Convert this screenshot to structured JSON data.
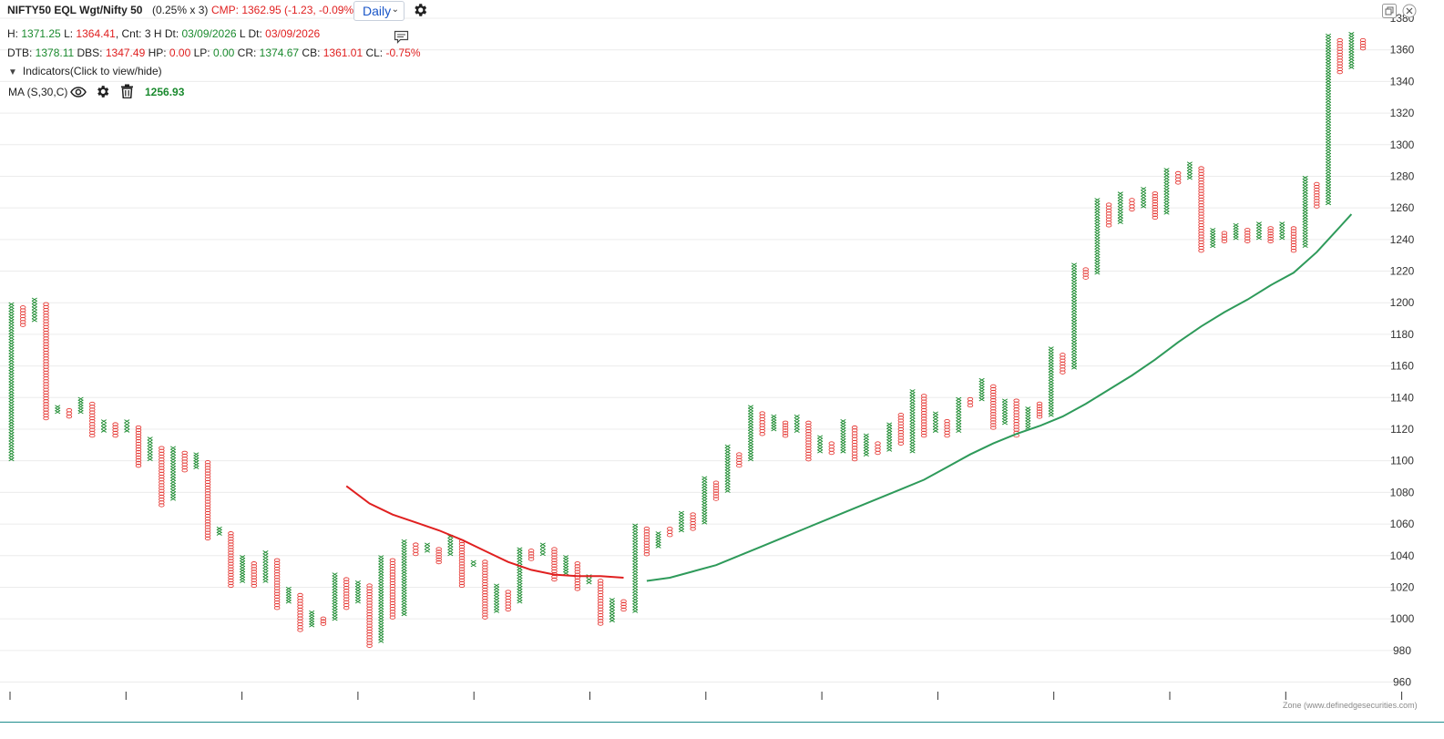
{
  "header": {
    "symbol": "NIFTY50 EQL Wgt/Nifty 50",
    "box_info": "(0.25% x 3)",
    "cmp": "CMP: 1362.95 (-1.23, -0.09%)",
    "interval": "Daily",
    "row2": {
      "h_label": "H: ",
      "h_value": "1371.25",
      "l_label": " L: ",
      "l_value": "1364.41",
      "cnt": ", Cnt: 3 H Dt: ",
      "h_dt": "03/09/2026",
      "l_dt_label": " L Dt: ",
      "l_dt": "03/09/2026"
    },
    "row3": {
      "dtb_label": "DTB: ",
      "dtb": "1378.11",
      "dbs_label": " DBS: ",
      "dbs": "1347.49",
      "hp_label": " HP: ",
      "hp": "0.00",
      "lp_label": " LP: ",
      "lp": "0.00",
      "cr_label": " CR: ",
      "cr": "1374.67",
      "cb_label": " CB: ",
      "cb": "1361.01",
      "cl_label": " CL: ",
      "cl": "-0.75%"
    },
    "indicators_toggle": "Indicators(Click to view/hide)",
    "indicator": {
      "name": "MA (S,30,C)",
      "value": "1256.93"
    }
  },
  "watermark": "Zone (www.definedgesecurities.com)",
  "colors": {
    "x": "#1a8a2e",
    "o": "#e53935",
    "ma_green": "#2e9a5a",
    "ma_red": "#e02020",
    "grid": "#ececec"
  },
  "icons": [
    "gear-icon",
    "eye-icon",
    "trash-icon",
    "comment-icon",
    "restore-window-icon",
    "close-icon"
  ],
  "chart_data": {
    "type": "point-and-figure",
    "box_percent": 0.25,
    "reversal": 3,
    "ylim": [
      958,
      1380
    ],
    "y_ticks": [
      "960",
      "980",
      "1000",
      "1020",
      "1040",
      "1060",
      "1080",
      "1100",
      "1120",
      "1140",
      "1160",
      "1180",
      "1200",
      "1220",
      "1240",
      "1260",
      "1280",
      "1300",
      "1320",
      "1340",
      "1360",
      "1380"
    ],
    "columns": [
      {
        "t": "X",
        "lo": 1100,
        "hi": 1200
      },
      {
        "t": "O",
        "lo": 1185,
        "hi": 1198
      },
      {
        "t": "X",
        "lo": 1188,
        "hi": 1203
      },
      {
        "t": "O",
        "lo": 1126,
        "hi": 1200
      },
      {
        "t": "X",
        "lo": 1130,
        "hi": 1135
      },
      {
        "t": "O",
        "lo": 1127,
        "hi": 1133
      },
      {
        "t": "X",
        "lo": 1130,
        "hi": 1140
      },
      {
        "t": "O",
        "lo": 1115,
        "hi": 1137
      },
      {
        "t": "X",
        "lo": 1118,
        "hi": 1126
      },
      {
        "t": "O",
        "lo": 1115,
        "hi": 1124
      },
      {
        "t": "X",
        "lo": 1118,
        "hi": 1126
      },
      {
        "t": "O",
        "lo": 1096,
        "hi": 1122
      },
      {
        "t": "X",
        "lo": 1100,
        "hi": 1115
      },
      {
        "t": "O",
        "lo": 1071,
        "hi": 1109
      },
      {
        "t": "X",
        "lo": 1075,
        "hi": 1109
      },
      {
        "t": "O",
        "lo": 1093,
        "hi": 1106
      },
      {
        "t": "X",
        "lo": 1095,
        "hi": 1105
      },
      {
        "t": "O",
        "lo": 1050,
        "hi": 1100
      },
      {
        "t": "X",
        "lo": 1053,
        "hi": 1058
      },
      {
        "t": "O",
        "lo": 1020,
        "hi": 1055
      },
      {
        "t": "X",
        "lo": 1023,
        "hi": 1040
      },
      {
        "t": "O",
        "lo": 1020,
        "hi": 1036
      },
      {
        "t": "X",
        "lo": 1023,
        "hi": 1043
      },
      {
        "t": "O",
        "lo": 1006,
        "hi": 1038
      },
      {
        "t": "X",
        "lo": 1010,
        "hi": 1020
      },
      {
        "t": "O",
        "lo": 992,
        "hi": 1016
      },
      {
        "t": "X",
        "lo": 995,
        "hi": 1005
      },
      {
        "t": "O",
        "lo": 996,
        "hi": 1001
      },
      {
        "t": "X",
        "lo": 999,
        "hi": 1029
      },
      {
        "t": "O",
        "lo": 1006,
        "hi": 1026
      },
      {
        "t": "X",
        "lo": 1010,
        "hi": 1024
      },
      {
        "t": "O",
        "lo": 982,
        "hi": 1022
      },
      {
        "t": "X",
        "lo": 985,
        "hi": 1040
      },
      {
        "t": "O",
        "lo": 1000,
        "hi": 1038
      },
      {
        "t": "X",
        "lo": 1002,
        "hi": 1050
      },
      {
        "t": "O",
        "lo": 1040,
        "hi": 1048
      },
      {
        "t": "X",
        "lo": 1042,
        "hi": 1048
      },
      {
        "t": "O",
        "lo": 1035,
        "hi": 1045
      },
      {
        "t": "X",
        "lo": 1040,
        "hi": 1053
      },
      {
        "t": "O",
        "lo": 1020,
        "hi": 1050
      },
      {
        "t": "X",
        "lo": 1033,
        "hi": 1037
      },
      {
        "t": "O",
        "lo": 1000,
        "hi": 1037
      },
      {
        "t": "X",
        "lo": 1004,
        "hi": 1022
      },
      {
        "t": "O",
        "lo": 1005,
        "hi": 1018
      },
      {
        "t": "X",
        "lo": 1010,
        "hi": 1045
      },
      {
        "t": "O",
        "lo": 1037,
        "hi": 1044
      },
      {
        "t": "X",
        "lo": 1040,
        "hi": 1048
      },
      {
        "t": "O",
        "lo": 1024,
        "hi": 1045
      },
      {
        "t": "X",
        "lo": 1028,
        "hi": 1040
      },
      {
        "t": "O",
        "lo": 1018,
        "hi": 1036
      },
      {
        "t": "X",
        "lo": 1022,
        "hi": 1028
      },
      {
        "t": "O",
        "lo": 996,
        "hi": 1025
      },
      {
        "t": "X",
        "lo": 998,
        "hi": 1013
      },
      {
        "t": "O",
        "lo": 1005,
        "hi": 1012
      },
      {
        "t": "X",
        "lo": 1004,
        "hi": 1060
      },
      {
        "t": "O",
        "lo": 1040,
        "hi": 1058
      },
      {
        "t": "X",
        "lo": 1045,
        "hi": 1055
      },
      {
        "t": "O",
        "lo": 1052,
        "hi": 1058
      },
      {
        "t": "X",
        "lo": 1055,
        "hi": 1068
      },
      {
        "t": "O",
        "lo": 1056,
        "hi": 1067
      },
      {
        "t": "X",
        "lo": 1060,
        "hi": 1090
      },
      {
        "t": "O",
        "lo": 1075,
        "hi": 1087
      },
      {
        "t": "X",
        "lo": 1080,
        "hi": 1110
      },
      {
        "t": "O",
        "lo": 1096,
        "hi": 1105
      },
      {
        "t": "X",
        "lo": 1100,
        "hi": 1135
      },
      {
        "t": "O",
        "lo": 1116,
        "hi": 1131
      },
      {
        "t": "X",
        "lo": 1119,
        "hi": 1129
      },
      {
        "t": "O",
        "lo": 1115,
        "hi": 1125
      },
      {
        "t": "X",
        "lo": 1118,
        "hi": 1129
      },
      {
        "t": "O",
        "lo": 1100,
        "hi": 1125
      },
      {
        "t": "X",
        "lo": 1105,
        "hi": 1116
      },
      {
        "t": "O",
        "lo": 1104,
        "hi": 1112
      },
      {
        "t": "X",
        "lo": 1105,
        "hi": 1126
      },
      {
        "t": "O",
        "lo": 1100,
        "hi": 1122
      },
      {
        "t": "X",
        "lo": 1103,
        "hi": 1117
      },
      {
        "t": "O",
        "lo": 1104,
        "hi": 1112
      },
      {
        "t": "X",
        "lo": 1106,
        "hi": 1124
      },
      {
        "t": "O",
        "lo": 1110,
        "hi": 1130
      },
      {
        "t": "X",
        "lo": 1105,
        "hi": 1145
      },
      {
        "t": "O",
        "lo": 1115,
        "hi": 1142
      },
      {
        "t": "X",
        "lo": 1118,
        "hi": 1131
      },
      {
        "t": "O",
        "lo": 1115,
        "hi": 1126
      },
      {
        "t": "X",
        "lo": 1118,
        "hi": 1140
      },
      {
        "t": "O",
        "lo": 1134,
        "hi": 1140
      },
      {
        "t": "X",
        "lo": 1138,
        "hi": 1152
      },
      {
        "t": "O",
        "lo": 1120,
        "hi": 1148
      },
      {
        "t": "X",
        "lo": 1123,
        "hi": 1139
      },
      {
        "t": "O",
        "lo": 1115,
        "hi": 1139
      },
      {
        "t": "X",
        "lo": 1120,
        "hi": 1134
      },
      {
        "t": "O",
        "lo": 1127,
        "hi": 1137
      },
      {
        "t": "X",
        "lo": 1128,
        "hi": 1172
      },
      {
        "t": "O",
        "lo": 1155,
        "hi": 1168
      },
      {
        "t": "X",
        "lo": 1158,
        "hi": 1225
      },
      {
        "t": "O",
        "lo": 1215,
        "hi": 1222
      },
      {
        "t": "X",
        "lo": 1218,
        "hi": 1266
      },
      {
        "t": "O",
        "lo": 1248,
        "hi": 1263
      },
      {
        "t": "X",
        "lo": 1250,
        "hi": 1270
      },
      {
        "t": "O",
        "lo": 1258,
        "hi": 1266
      },
      {
        "t": "X",
        "lo": 1260,
        "hi": 1273
      },
      {
        "t": "O",
        "lo": 1253,
        "hi": 1270
      },
      {
        "t": "X",
        "lo": 1256,
        "hi": 1285
      },
      {
        "t": "O",
        "lo": 1275,
        "hi": 1283
      },
      {
        "t": "X",
        "lo": 1278,
        "hi": 1289
      },
      {
        "t": "O",
        "lo": 1232,
        "hi": 1286
      },
      {
        "t": "X",
        "lo": 1235,
        "hi": 1247
      },
      {
        "t": "O",
        "lo": 1238,
        "hi": 1245
      },
      {
        "t": "X",
        "lo": 1240,
        "hi": 1250
      },
      {
        "t": "O",
        "lo": 1238,
        "hi": 1247
      },
      {
        "t": "X",
        "lo": 1240,
        "hi": 1251
      },
      {
        "t": "O",
        "lo": 1238,
        "hi": 1248
      },
      {
        "t": "X",
        "lo": 1240,
        "hi": 1251
      },
      {
        "t": "O",
        "lo": 1232,
        "hi": 1248
      },
      {
        "t": "X",
        "lo": 1235,
        "hi": 1280
      },
      {
        "t": "O",
        "lo": 1260,
        "hi": 1276
      },
      {
        "t": "X",
        "lo": 1262,
        "hi": 1370
      },
      {
        "t": "O",
        "lo": 1345,
        "hi": 1367
      },
      {
        "t": "X",
        "lo": 1348,
        "hi": 1371
      },
      {
        "t": "O",
        "lo": 1360,
        "hi": 1367
      }
    ],
    "moving_average": {
      "name": "MA (S,30,C)",
      "points": [
        [
          29,
          1084
        ],
        [
          31,
          1073
        ],
        [
          33,
          1066
        ],
        [
          35,
          1061
        ],
        [
          37,
          1056
        ],
        [
          39,
          1050
        ],
        [
          41,
          1043
        ],
        [
          43,
          1036
        ],
        [
          45,
          1031
        ],
        [
          47,
          1028
        ],
        [
          49,
          1027
        ],
        [
          51,
          1027
        ],
        [
          53,
          1026
        ],
        [
          55,
          1024
        ],
        [
          57,
          1026
        ],
        [
          59,
          1030
        ],
        [
          61,
          1034
        ],
        [
          63,
          1040
        ],
        [
          65,
          1046
        ],
        [
          67,
          1052
        ],
        [
          69,
          1058
        ],
        [
          71,
          1064
        ],
        [
          73,
          1070
        ],
        [
          75,
          1076
        ],
        [
          77,
          1082
        ],
        [
          79,
          1088
        ],
        [
          81,
          1096
        ],
        [
          83,
          1104
        ],
        [
          85,
          1111
        ],
        [
          87,
          1117
        ],
        [
          89,
          1122
        ],
        [
          91,
          1128
        ],
        [
          93,
          1136
        ],
        [
          95,
          1145
        ],
        [
          97,
          1154
        ],
        [
          99,
          1164
        ],
        [
          101,
          1175
        ],
        [
          103,
          1185
        ],
        [
          105,
          1194
        ],
        [
          107,
          1202
        ],
        [
          109,
          1211
        ],
        [
          111,
          1219
        ],
        [
          113,
          1232
        ],
        [
          115,
          1248
        ],
        [
          116,
          1256
        ]
      ],
      "red_until_index": 54
    }
  }
}
